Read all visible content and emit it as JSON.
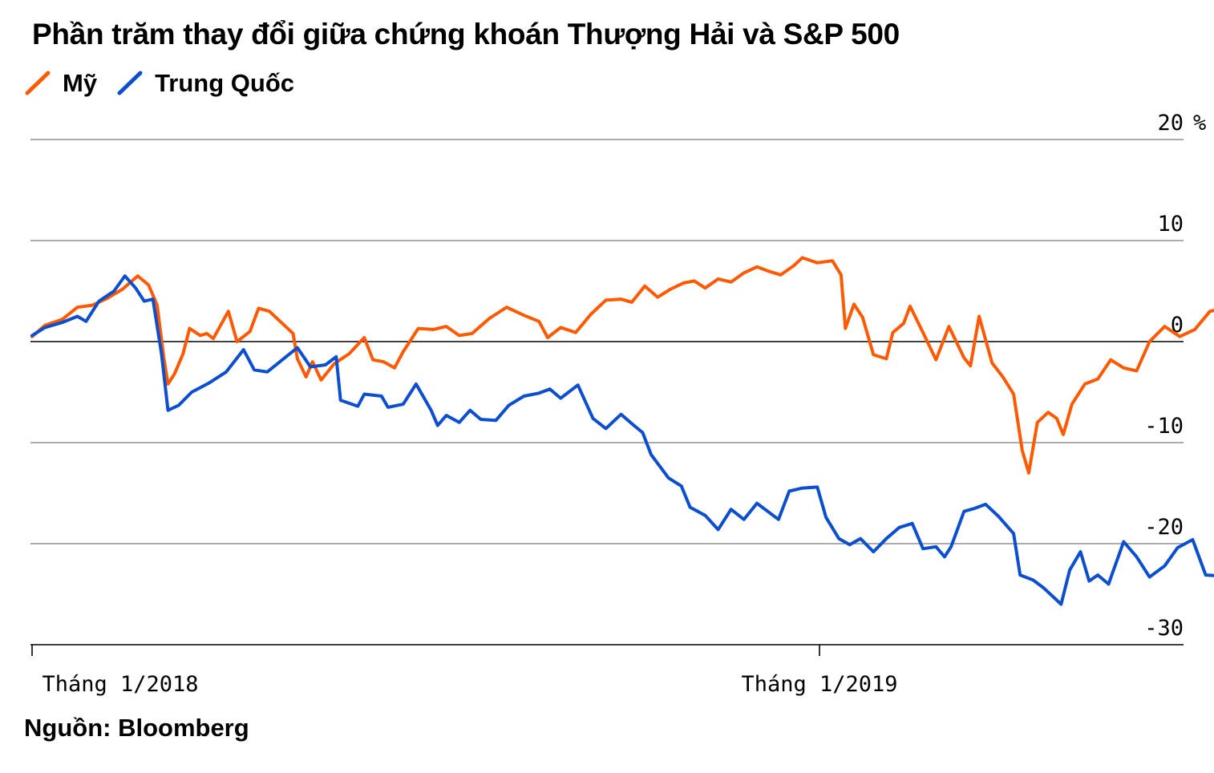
{
  "source": "Nguồn: Bloomberg",
  "chart_data": {
    "type": "line",
    "title": "Phần trăm thay đổi giữa chứng khoán Thượng Hải và S&P 500",
    "xlabel": "",
    "ylabel": "",
    "y_unit": "%",
    "ylim": [
      -30,
      20
    ],
    "yticks": [
      20,
      10,
      0,
      -10,
      -20,
      -30
    ],
    "ytick_labels": [
      "20",
      "10",
      "0",
      "-10",
      "-20",
      "-30"
    ],
    "xticks": [
      {
        "date": "2018-01-01",
        "label": "Tháng  1/2018"
      },
      {
        "date": "2019-01-01",
        "label": "Tháng  1/2019"
      }
    ],
    "grid": true,
    "legend_position": "top-left",
    "series": [
      {
        "name": "Mỹ",
        "color": "#ff5a00",
        "points": [
          [
            "2018-01-01",
            0.5
          ],
          [
            "2018-01-07",
            1.6
          ],
          [
            "2018-01-15",
            2.2
          ],
          [
            "2018-01-22",
            3.4
          ],
          [
            "2018-01-29",
            3.6
          ],
          [
            "2018-02-05",
            4.3
          ],
          [
            "2018-02-12",
            5.2
          ],
          [
            "2018-02-19",
            6.5
          ],
          [
            "2018-02-24",
            5.6
          ],
          [
            "2018-02-28",
            3.6
          ],
          [
            "2018-03-03",
            -1.5
          ],
          [
            "2018-03-05",
            -4.2
          ],
          [
            "2018-03-08",
            -3.2
          ],
          [
            "2018-03-12",
            -1.2
          ],
          [
            "2018-03-15",
            1.3
          ],
          [
            "2018-03-20",
            0.6
          ],
          [
            "2018-03-23",
            0.8
          ],
          [
            "2018-03-26",
            0.3
          ],
          [
            "2018-04-02",
            3.0
          ],
          [
            "2018-04-06",
            0.0
          ],
          [
            "2018-04-12",
            1.0
          ],
          [
            "2018-04-16",
            3.3
          ],
          [
            "2018-04-21",
            3.0
          ],
          [
            "2018-04-27",
            1.8
          ],
          [
            "2018-05-02",
            0.8
          ],
          [
            "2018-05-04",
            -1.7
          ],
          [
            "2018-05-08",
            -3.5
          ],
          [
            "2018-05-11",
            -2.0
          ],
          [
            "2018-05-15",
            -3.8
          ],
          [
            "2018-05-21",
            -2.2
          ],
          [
            "2018-05-28",
            -1.2
          ],
          [
            "2018-06-04",
            0.4
          ],
          [
            "2018-06-08",
            -1.8
          ],
          [
            "2018-06-13",
            -2.0
          ],
          [
            "2018-06-18",
            -2.6
          ],
          [
            "2018-06-22",
            -1.0
          ],
          [
            "2018-06-29",
            1.3
          ],
          [
            "2018-07-06",
            1.2
          ],
          [
            "2018-07-12",
            1.5
          ],
          [
            "2018-07-18",
            0.6
          ],
          [
            "2018-07-24",
            0.8
          ],
          [
            "2018-08-01",
            2.3
          ],
          [
            "2018-08-09",
            3.4
          ],
          [
            "2018-08-17",
            2.6
          ],
          [
            "2018-08-24",
            2.0
          ],
          [
            "2018-08-28",
            0.4
          ],
          [
            "2018-09-03",
            1.4
          ],
          [
            "2018-09-10",
            0.9
          ],
          [
            "2018-09-17",
            2.7
          ],
          [
            "2018-09-24",
            4.1
          ],
          [
            "2018-10-01",
            4.2
          ],
          [
            "2018-10-06",
            3.9
          ],
          [
            "2018-10-12",
            5.5
          ],
          [
            "2018-10-18",
            4.4
          ],
          [
            "2018-10-24",
            5.2
          ],
          [
            "2018-10-30",
            5.8
          ],
          [
            "2018-11-04",
            6.0
          ],
          [
            "2018-11-09",
            5.3
          ],
          [
            "2018-11-15",
            6.2
          ],
          [
            "2018-11-21",
            5.9
          ],
          [
            "2018-11-27",
            6.8
          ],
          [
            "2018-12-03",
            7.4
          ],
          [
            "2018-12-08",
            7.0
          ],
          [
            "2018-12-14",
            6.6
          ],
          [
            "2018-12-20",
            7.5
          ],
          [
            "2018-12-24",
            8.3
          ],
          [
            "2018-12-31",
            7.8
          ],
          [
            "2019-01-07",
            8.0
          ],
          [
            "2019-01-11",
            6.6
          ],
          [
            "2019-01-13",
            1.3
          ],
          [
            "2019-01-17",
            3.7
          ],
          [
            "2019-01-21",
            2.4
          ],
          [
            "2019-01-26",
            -1.3
          ],
          [
            "2019-02-01",
            -1.7
          ],
          [
            "2019-02-04",
            0.9
          ],
          [
            "2019-02-09",
            1.8
          ],
          [
            "2019-02-12",
            3.5
          ],
          [
            "2019-02-18",
            0.9
          ],
          [
            "2019-02-24",
            -1.8
          ],
          [
            "2019-03-02",
            1.5
          ],
          [
            "2019-03-09",
            -1.6
          ],
          [
            "2019-03-12",
            -2.4
          ],
          [
            "2019-03-16",
            2.5
          ],
          [
            "2019-03-22",
            -2.1
          ],
          [
            "2019-03-27",
            -3.5
          ],
          [
            "2019-04-01",
            -5.2
          ],
          [
            "2019-04-05",
            -10.8
          ],
          [
            "2019-04-08",
            -13.0
          ],
          [
            "2019-04-12",
            -8.0
          ],
          [
            "2019-04-17",
            -7.0
          ],
          [
            "2019-04-21",
            -7.6
          ],
          [
            "2019-04-24",
            -9.2
          ],
          [
            "2019-04-28",
            -6.2
          ],
          [
            "2019-05-04",
            -4.2
          ],
          [
            "2019-05-10",
            -3.7
          ],
          [
            "2019-05-16",
            -1.8
          ],
          [
            "2019-05-22",
            -2.6
          ],
          [
            "2019-05-28",
            -2.9
          ],
          [
            "2019-06-03",
            0.0
          ],
          [
            "2019-06-10",
            1.5
          ],
          [
            "2019-06-17",
            0.5
          ],
          [
            "2019-06-24",
            1.2
          ],
          [
            "2019-07-01",
            3.0
          ],
          [
            "2019-07-08",
            3.3
          ],
          [
            "2019-07-15",
            3.6
          ],
          [
            "2019-07-22",
            2.7
          ],
          [
            "2019-07-29",
            1.8
          ],
          [
            "2019-08-01",
            1.0
          ],
          [
            "2019-08-07",
            3.8
          ],
          [
            "2019-08-12",
            4.6
          ],
          [
            "2019-08-18",
            5.3
          ],
          [
            "2019-08-24",
            3.7
          ],
          [
            "2019-08-30",
            4.2
          ],
          [
            "2019-09-05",
            5.3
          ],
          [
            "2019-09-12",
            6.1
          ],
          [
            "2019-09-18",
            6.8
          ],
          [
            "2019-09-24",
            7.2
          ],
          [
            "2019-10-01",
            7.8
          ],
          [
            "2019-10-07",
            8.3
          ],
          [
            "2019-10-13",
            8.7
          ],
          [
            "2019-10-16",
            7.3
          ],
          [
            "2019-10-20",
            6.5
          ],
          [
            "2019-10-25",
            4.5
          ],
          [
            "2019-10-29",
            6.6
          ],
          [
            "2019-11-02",
            5.2
          ],
          [
            "2019-11-05",
            5.6
          ]
        ]
      },
      {
        "name": "Trung Quốc",
        "color": "#0b4fcf",
        "points": [
          [
            "2018-01-01",
            0.6
          ],
          [
            "2018-01-07",
            1.4
          ],
          [
            "2018-01-15",
            1.9
          ],
          [
            "2018-01-22",
            2.5
          ],
          [
            "2018-01-26",
            2.0
          ],
          [
            "2018-02-01",
            4.0
          ],
          [
            "2018-02-08",
            5.0
          ],
          [
            "2018-02-13",
            6.5
          ],
          [
            "2018-02-18",
            5.3
          ],
          [
            "2018-02-22",
            4.0
          ],
          [
            "2018-02-26",
            4.2
          ],
          [
            "2018-03-02",
            -1.2
          ],
          [
            "2018-03-05",
            -6.8
          ],
          [
            "2018-03-10",
            -6.3
          ],
          [
            "2018-03-16",
            -5.0
          ],
          [
            "2018-03-24",
            -4.1
          ],
          [
            "2018-04-01",
            -3.0
          ],
          [
            "2018-04-09",
            -0.8
          ],
          [
            "2018-04-14",
            -2.8
          ],
          [
            "2018-04-20",
            -3.0
          ],
          [
            "2018-04-27",
            -1.8
          ],
          [
            "2018-05-04",
            -0.6
          ],
          [
            "2018-05-10",
            -2.5
          ],
          [
            "2018-05-17",
            -2.3
          ],
          [
            "2018-05-22",
            -1.5
          ],
          [
            "2018-05-24",
            -5.8
          ],
          [
            "2018-06-01",
            -6.4
          ],
          [
            "2018-06-04",
            -5.2
          ],
          [
            "2018-06-12",
            -5.4
          ],
          [
            "2018-06-15",
            -6.5
          ],
          [
            "2018-06-22",
            -6.2
          ],
          [
            "2018-06-28",
            -4.2
          ],
          [
            "2018-07-05",
            -6.8
          ],
          [
            "2018-07-08",
            -8.3
          ],
          [
            "2018-07-12",
            -7.3
          ],
          [
            "2018-07-18",
            -8.0
          ],
          [
            "2018-07-23",
            -6.8
          ],
          [
            "2018-07-28",
            -7.7
          ],
          [
            "2018-08-04",
            -7.8
          ],
          [
            "2018-08-10",
            -6.3
          ],
          [
            "2018-08-17",
            -5.4
          ],
          [
            "2018-08-24",
            -5.1
          ],
          [
            "2018-08-29",
            -4.7
          ],
          [
            "2018-09-03",
            -5.6
          ],
          [
            "2018-09-11",
            -4.3
          ],
          [
            "2018-09-18",
            -7.6
          ],
          [
            "2018-09-24",
            -8.6
          ],
          [
            "2018-10-01",
            -7.2
          ],
          [
            "2018-10-07",
            -8.3
          ],
          [
            "2018-10-11",
            -9.0
          ],
          [
            "2018-10-15",
            -11.2
          ],
          [
            "2018-10-23",
            -13.5
          ],
          [
            "2018-10-29",
            -14.3
          ],
          [
            "2018-11-02",
            -16.4
          ],
          [
            "2018-11-09",
            -17.2
          ],
          [
            "2018-11-15",
            -18.6
          ],
          [
            "2018-11-21",
            -16.6
          ],
          [
            "2018-11-27",
            -17.6
          ],
          [
            "2018-12-03",
            -16.0
          ],
          [
            "2018-12-08",
            -16.8
          ],
          [
            "2018-12-13",
            -17.6
          ],
          [
            "2018-12-18",
            -14.8
          ],
          [
            "2018-12-24",
            -14.5
          ],
          [
            "2018-12-31",
            -14.4
          ],
          [
            "2019-01-04",
            -17.4
          ],
          [
            "2019-01-10",
            -19.5
          ],
          [
            "2019-01-15",
            -20.1
          ],
          [
            "2019-01-20",
            -19.5
          ],
          [
            "2019-01-26",
            -20.8
          ],
          [
            "2019-02-01",
            -19.5
          ],
          [
            "2019-02-07",
            -18.4
          ],
          [
            "2019-02-13",
            -18.0
          ],
          [
            "2019-02-18",
            -20.5
          ],
          [
            "2019-02-24",
            -20.3
          ],
          [
            "2019-02-28",
            -21.3
          ],
          [
            "2019-03-03",
            -20.3
          ],
          [
            "2019-03-09",
            -16.8
          ],
          [
            "2019-03-14",
            -16.5
          ],
          [
            "2019-03-19",
            -16.1
          ],
          [
            "2019-03-25",
            -17.3
          ],
          [
            "2019-04-01",
            -19.0
          ],
          [
            "2019-04-04",
            -23.1
          ],
          [
            "2019-04-10",
            -23.6
          ],
          [
            "2019-04-15",
            -24.4
          ],
          [
            "2019-04-20",
            -25.4
          ],
          [
            "2019-04-23",
            -26.0
          ],
          [
            "2019-04-27",
            -22.6
          ],
          [
            "2019-05-02",
            -20.8
          ],
          [
            "2019-05-06",
            -23.7
          ],
          [
            "2019-05-10",
            -23.1
          ],
          [
            "2019-05-15",
            -24.0
          ],
          [
            "2019-05-22",
            -19.8
          ],
          [
            "2019-05-28",
            -21.3
          ],
          [
            "2019-06-03",
            -23.3
          ],
          [
            "2019-06-10",
            -22.2
          ],
          [
            "2019-06-16",
            -20.4
          ],
          [
            "2019-06-23",
            -19.6
          ],
          [
            "2019-06-29",
            -23.1
          ],
          [
            "2019-07-06",
            -23.2
          ],
          [
            "2019-07-11",
            -23.4
          ],
          [
            "2019-07-16",
            -20.5
          ],
          [
            "2019-07-22",
            -22.5
          ],
          [
            "2019-07-28",
            -22.0
          ],
          [
            "2019-08-03",
            -22.9
          ],
          [
            "2019-08-09",
            -24.5
          ],
          [
            "2019-08-14",
            -25.5
          ],
          [
            "2019-08-20",
            -25.6
          ],
          [
            "2019-08-26",
            -26.4
          ],
          [
            "2019-08-31",
            -26.7
          ],
          [
            "2019-09-06",
            -24.8
          ],
          [
            "2019-09-12",
            -24.2
          ],
          [
            "2019-09-18",
            -23.5
          ],
          [
            "2019-09-24",
            -22.2
          ],
          [
            "2019-10-01",
            -22.6
          ],
          [
            "2019-10-07",
            -23.3
          ],
          [
            "2019-10-12",
            -21.4
          ],
          [
            "2019-10-18",
            -20.6
          ],
          [
            "2019-10-25",
            -19.5
          ],
          [
            "2019-10-31",
            -18.7
          ],
          [
            "2019-11-05",
            -17.1
          ]
        ]
      }
    ]
  }
}
